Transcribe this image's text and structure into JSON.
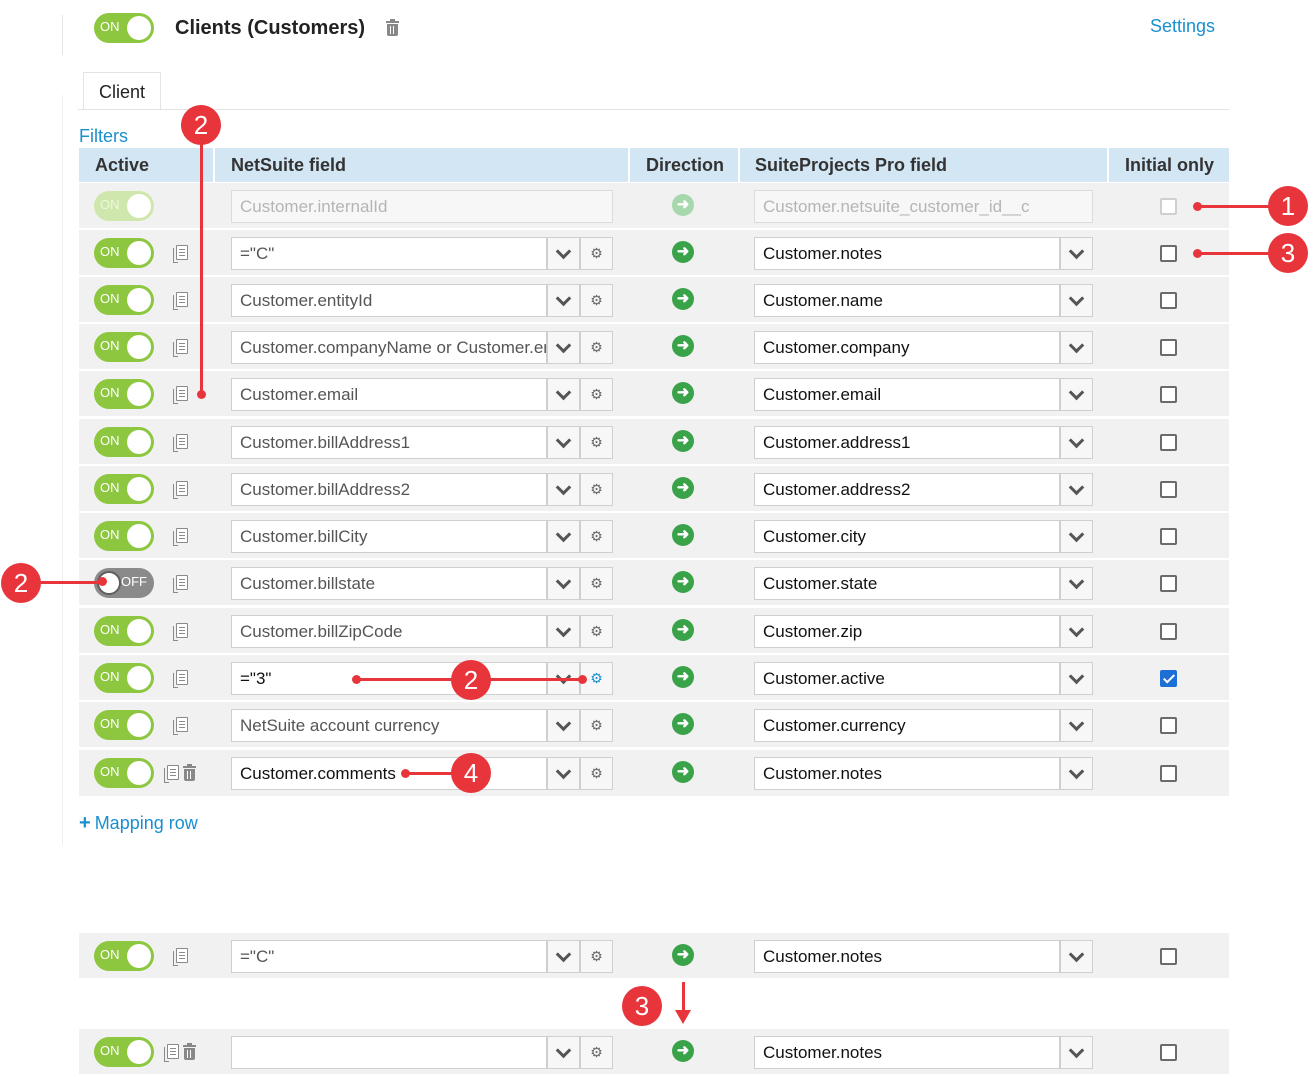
{
  "header": {
    "toggle_label": "ON",
    "title": "Clients (Customers)",
    "settings_link": "Settings"
  },
  "tabs": [
    {
      "label": "Client"
    }
  ],
  "filters_link": "Filters",
  "table": {
    "headers": {
      "active": "Active",
      "netsuite_field": "NetSuite field",
      "direction": "Direction",
      "sp_field": "SuiteProjects Pro field",
      "initial_only": "Initial only"
    },
    "rows": [
      {
        "toggle": "ON",
        "ns": "Customer.internalId",
        "sp": "Customer.netsuite_customer_id__c",
        "initial": false
      },
      {
        "toggle": "ON",
        "ns": "=\"C\"",
        "sp": "Customer.notes",
        "initial": false
      },
      {
        "toggle": "ON",
        "ns": "Customer.entityId",
        "sp": "Customer.name",
        "initial": false
      },
      {
        "toggle": "ON",
        "ns": "Customer.companyName or Customer.entityId",
        "sp": "Customer.company",
        "initial": false
      },
      {
        "toggle": "ON",
        "ns": "Customer.email",
        "sp": "Customer.email",
        "initial": false
      },
      {
        "toggle": "ON",
        "ns": "Customer.billAddress1",
        "sp": "Customer.address1",
        "initial": false
      },
      {
        "toggle": "ON",
        "ns": "Customer.billAddress2",
        "sp": "Customer.address2",
        "initial": false
      },
      {
        "toggle": "ON",
        "ns": "Customer.billCity",
        "sp": "Customer.city",
        "initial": false
      },
      {
        "toggle": "OFF",
        "ns": "Customer.billstate",
        "sp": "Customer.state",
        "initial": false
      },
      {
        "toggle": "ON",
        "ns": "Customer.billZipCode",
        "sp": "Customer.zip",
        "initial": false
      },
      {
        "toggle": "ON",
        "ns": "=\"3\"",
        "sp": "Customer.active",
        "initial": true
      },
      {
        "toggle": "ON",
        "ns": "NetSuite account currency",
        "sp": "Customer.currency",
        "initial": false
      },
      {
        "toggle": "ON",
        "ns": "Customer.comments",
        "sp": "Customer.notes",
        "initial": false
      }
    ]
  },
  "add_mapping_row": "Mapping row",
  "example_rows": [
    {
      "toggle": "ON",
      "ns": "=\"C\"",
      "sp": "Customer.notes",
      "initial": false
    },
    {
      "toggle": "ON",
      "ns": "",
      "sp": "Customer.notes",
      "initial": false
    }
  ],
  "annotations": [
    "1",
    "2",
    "2",
    "2",
    "3",
    "3",
    "4"
  ],
  "colors": {
    "accent": "#1a8fd0",
    "toggle_on": "#8dc63f",
    "direction": "#3aa34a",
    "annotation": "#e8353b",
    "header_bg": "#d3e6f4"
  }
}
